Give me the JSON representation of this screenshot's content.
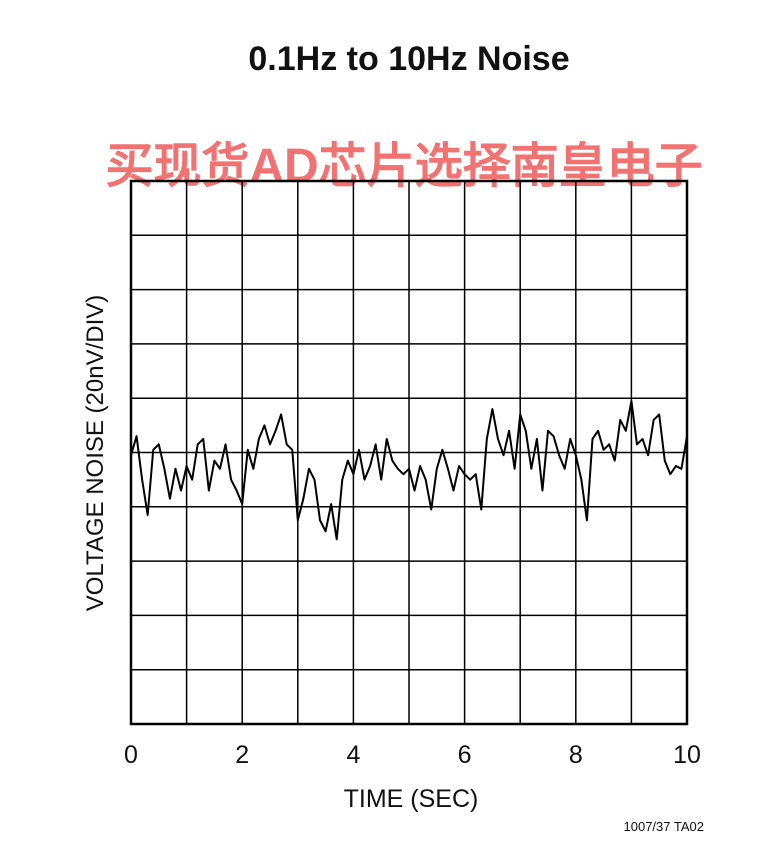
{
  "chart_data": {
    "type": "line",
    "title": "0.1Hz to 10Hz Noise",
    "watermark": "买现货AD芯片选择南皇电子",
    "ylabel": "VOLTAGE NOISE (20nV/DIV)",
    "xlabel": "TIME (SEC)",
    "footnote": "1007/37 TA02",
    "x": [
      0,
      0.1,
      0.2,
      0.3,
      0.4,
      0.5,
      0.6,
      0.7,
      0.8,
      0.9,
      1,
      1.1,
      1.2,
      1.3,
      1.4,
      1.5,
      1.6,
      1.7,
      1.8,
      1.9,
      2,
      2.1,
      2.2,
      2.3,
      2.4,
      2.5,
      2.6,
      2.7,
      2.8,
      2.9,
      3,
      3.1,
      3.2,
      3.3,
      3.4,
      3.5,
      3.6,
      3.7,
      3.8,
      3.9,
      4,
      4.1,
      4.2,
      4.3,
      4.4,
      4.5,
      4.6,
      4.7,
      4.8,
      4.9,
      5,
      5.1,
      5.2,
      5.3,
      5.4,
      5.5,
      5.6,
      5.7,
      5.8,
      5.9,
      6,
      6.1,
      6.2,
      6.3,
      6.4,
      6.5,
      6.6,
      6.7,
      6.8,
      6.9,
      7,
      7.1,
      7.2,
      7.3,
      7.4,
      7.5,
      7.6,
      7.7,
      7.8,
      7.9,
      8,
      8.1,
      8.2,
      8.3,
      8.4,
      8.5,
      8.6,
      8.7,
      8.8,
      8.9,
      9,
      9.1,
      9.2,
      9.3,
      9.4,
      9.5,
      9.6,
      9.7,
      9.8,
      9.9,
      10
    ],
    "values": [
      -1,
      6,
      -10,
      -23,
      1,
      3,
      -6,
      -17,
      -6,
      -14,
      -5,
      -10,
      3,
      5,
      -14,
      -3,
      -6,
      3,
      -10,
      -14,
      -19,
      1,
      -6,
      5,
      10,
      3,
      8,
      14,
      3,
      1,
      -25,
      -17,
      -6,
      -10,
      -25,
      -29,
      -19,
      -32,
      -10,
      -3,
      -8,
      1,
      -10,
      -5,
      3,
      -10,
      5,
      -3,
      -6,
      -8,
      -6,
      -14,
      -5,
      -10,
      -21,
      -6,
      1,
      -6,
      -14,
      -5,
      -8,
      -10,
      -8,
      -21,
      5,
      16,
      5,
      -1,
      8,
      -6,
      14,
      8,
      -6,
      5,
      -14,
      8,
      6,
      -1,
      -6,
      5,
      -1,
      -10,
      -25,
      5,
      8,
      1,
      3,
      -3,
      12,
      8,
      19,
      3,
      5,
      -1,
      12,
      14,
      -3,
      -8,
      -5,
      -6,
      6
    ],
    "color": "#000000",
    "xlim": [
      0,
      10
    ],
    "xticks": [
      0,
      2,
      4,
      6,
      8,
      10
    ],
    "xgrid": [
      1,
      2,
      3,
      4,
      5,
      6,
      7,
      8,
      9
    ],
    "ylim": [
      -100,
      100
    ],
    "ygrid": [
      -80,
      -60,
      -40,
      -20,
      0,
      20,
      40,
      60,
      80
    ],
    "grid": true
  }
}
